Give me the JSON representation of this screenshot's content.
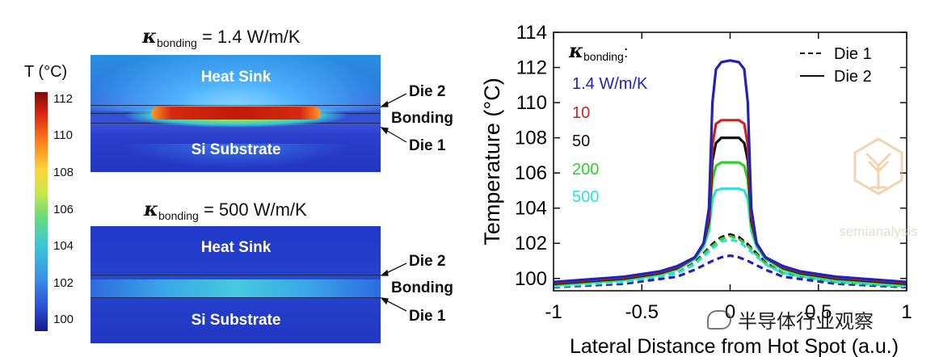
{
  "left": {
    "panels": [
      {
        "kappa_symbol": "κ",
        "kappa_sub": "bonding",
        "kappa_value": "= 1.4 W/m/K",
        "heat_sink": "Heat Sink",
        "substrate": "Si Substrate",
        "die2": "Die 2",
        "bonding": "Bonding",
        "die1": "Die 1"
      },
      {
        "kappa_symbol": "κ",
        "kappa_sub": "bonding",
        "kappa_value": "= 500 W/m/K",
        "heat_sink": "Heat Sink",
        "substrate": "Si Substrate",
        "die2": "Die 2",
        "bonding": "Bonding",
        "die1": "Die 1"
      }
    ],
    "colorbar": {
      "title": "T (°C)",
      "ticks": [
        "112",
        "110",
        "108",
        "106",
        "104",
        "102",
        "100"
      ]
    }
  },
  "watermark": {
    "brand": "semianalysis",
    "wechat": "半导体行业观察"
  },
  "chart_data": {
    "type": "line",
    "xlabel": "Lateral Distance from Hot Spot (a.u.)",
    "ylabel": "Temperature (°C)",
    "xlim": [
      -1,
      1
    ],
    "ylim": [
      99.3,
      114
    ],
    "xticks": [
      "-1",
      "-0.5",
      "0",
      "0.5",
      "1"
    ],
    "yticks": [
      "100",
      "102",
      "104",
      "106",
      "108",
      "110",
      "112",
      "114"
    ],
    "legend_title": {
      "symbol": "κ",
      "sub": "bonding",
      "suffix": ":"
    },
    "legend_styles": [
      {
        "name": "Die 1",
        "dash": true
      },
      {
        "name": "Die 2",
        "dash": false
      }
    ],
    "series_labels": [
      {
        "label": "1.4 W/m/K",
        "color": "#2222bb"
      },
      {
        "label": "10",
        "color": "#cc2222"
      },
      {
        "label": "50",
        "color": "#111111"
      },
      {
        "label": "200",
        "color": "#33cc33"
      },
      {
        "label": "500",
        "color": "#33dddd"
      }
    ],
    "series": [
      {
        "kappa": "1.4",
        "die": "Die 2",
        "color": "#2222bb",
        "dash": false,
        "x": [
          -1,
          -0.8,
          -0.6,
          -0.4,
          -0.3,
          -0.2,
          -0.15,
          -0.12,
          -0.1,
          -0.08,
          -0.05,
          0,
          0.05,
          0.08,
          0.1,
          0.12,
          0.15,
          0.2,
          0.3,
          0.4,
          0.6,
          0.8,
          1
        ],
        "y": [
          99.8,
          99.95,
          100.1,
          100.4,
          100.7,
          101.2,
          102.0,
          104.0,
          110.0,
          111.9,
          112.3,
          112.4,
          112.3,
          111.9,
          110.0,
          104.0,
          102.0,
          101.2,
          100.7,
          100.4,
          100.1,
          99.95,
          99.8
        ]
      },
      {
        "kappa": "10",
        "die": "Die 2",
        "color": "#cc2222",
        "dash": false,
        "x": [
          -1,
          -0.8,
          -0.6,
          -0.4,
          -0.3,
          -0.2,
          -0.15,
          -0.12,
          -0.1,
          -0.08,
          -0.05,
          0,
          0.05,
          0.08,
          0.1,
          0.12,
          0.15,
          0.2,
          0.3,
          0.4,
          0.6,
          0.8,
          1
        ],
        "y": [
          99.75,
          99.9,
          100.05,
          100.35,
          100.65,
          101.2,
          102.0,
          103.6,
          107.6,
          108.8,
          109.0,
          109.0,
          109.0,
          108.8,
          107.6,
          103.6,
          102.0,
          101.2,
          100.65,
          100.35,
          100.05,
          99.9,
          99.75
        ]
      },
      {
        "kappa": "50",
        "die": "Die 2",
        "color": "#111111",
        "dash": false,
        "x": [
          -1,
          -0.8,
          -0.6,
          -0.4,
          -0.3,
          -0.2,
          -0.15,
          -0.12,
          -0.1,
          -0.08,
          -0.05,
          0,
          0.05,
          0.08,
          0.1,
          0.12,
          0.15,
          0.2,
          0.3,
          0.4,
          0.6,
          0.8,
          1
        ],
        "y": [
          99.7,
          99.85,
          100.0,
          100.3,
          100.6,
          101.2,
          102.0,
          103.3,
          106.7,
          107.7,
          108.0,
          108.0,
          108.0,
          107.7,
          106.7,
          103.3,
          102.0,
          101.2,
          100.6,
          100.3,
          100.0,
          99.85,
          99.7
        ]
      },
      {
        "kappa": "200",
        "die": "Die 2",
        "color": "#33cc33",
        "dash": false,
        "x": [
          -1,
          -0.8,
          -0.6,
          -0.4,
          -0.3,
          -0.2,
          -0.15,
          -0.12,
          -0.1,
          -0.08,
          -0.05,
          0,
          0.05,
          0.08,
          0.1,
          0.12,
          0.15,
          0.2,
          0.3,
          0.4,
          0.6,
          0.8,
          1
        ],
        "y": [
          99.65,
          99.8,
          99.95,
          100.25,
          100.55,
          101.15,
          101.9,
          103.0,
          105.6,
          106.4,
          106.6,
          106.6,
          106.6,
          106.4,
          105.6,
          103.0,
          101.9,
          101.15,
          100.55,
          100.25,
          99.95,
          99.8,
          99.65
        ]
      },
      {
        "kappa": "500",
        "die": "Die 2",
        "color": "#33dddd",
        "dash": false,
        "x": [
          -1,
          -0.8,
          -0.6,
          -0.4,
          -0.3,
          -0.2,
          -0.15,
          -0.12,
          -0.1,
          -0.08,
          -0.05,
          0,
          0.05,
          0.08,
          0.1,
          0.12,
          0.15,
          0.2,
          0.3,
          0.4,
          0.6,
          0.8,
          1
        ],
        "y": [
          99.6,
          99.75,
          99.9,
          100.2,
          100.5,
          101.1,
          101.8,
          102.7,
          104.5,
          105.0,
          105.1,
          105.1,
          105.1,
          105.0,
          104.5,
          102.7,
          101.8,
          101.1,
          100.5,
          100.2,
          99.9,
          99.75,
          99.6
        ]
      },
      {
        "kappa": "1.4",
        "die": "Die 1",
        "color": "#2222bb",
        "dash": true,
        "x": [
          -1,
          -0.6,
          -0.3,
          -0.2,
          -0.1,
          -0.05,
          0,
          0.05,
          0.1,
          0.2,
          0.3,
          0.6,
          1
        ],
        "y": [
          99.5,
          99.7,
          100.1,
          100.5,
          101.0,
          101.2,
          101.3,
          101.2,
          101.0,
          100.5,
          100.1,
          99.7,
          99.5
        ]
      },
      {
        "kappa": "10",
        "die": "Die 1",
        "color": "#cc2222",
        "dash": true,
        "x": [
          -1,
          -0.6,
          -0.3,
          -0.2,
          -0.1,
          -0.05,
          0,
          0.05,
          0.1,
          0.2,
          0.3,
          0.6,
          1
        ],
        "y": [
          99.55,
          99.8,
          100.3,
          100.9,
          101.9,
          102.3,
          102.45,
          102.3,
          101.9,
          100.9,
          100.3,
          99.8,
          99.55
        ]
      },
      {
        "kappa": "50",
        "die": "Die 1",
        "color": "#111111",
        "dash": true,
        "x": [
          -1,
          -0.6,
          -0.3,
          -0.2,
          -0.1,
          -0.05,
          0,
          0.05,
          0.1,
          0.2,
          0.3,
          0.6,
          1
        ],
        "y": [
          99.55,
          99.8,
          100.3,
          100.9,
          101.95,
          102.35,
          102.5,
          102.35,
          101.95,
          100.9,
          100.3,
          99.8,
          99.55
        ]
      },
      {
        "kappa": "200",
        "die": "Die 1",
        "color": "#33cc33",
        "dash": true,
        "x": [
          -1,
          -0.6,
          -0.3,
          -0.2,
          -0.1,
          -0.05,
          0,
          0.05,
          0.1,
          0.2,
          0.3,
          0.6,
          1
        ],
        "y": [
          99.55,
          99.8,
          100.3,
          100.85,
          101.85,
          102.25,
          102.4,
          102.25,
          101.85,
          100.85,
          100.3,
          99.8,
          99.55
        ]
      },
      {
        "kappa": "500",
        "die": "Die 1",
        "color": "#33dddd",
        "dash": true,
        "x": [
          -1,
          -0.6,
          -0.3,
          -0.2,
          -0.1,
          -0.05,
          0,
          0.05,
          0.1,
          0.2,
          0.3,
          0.6,
          1
        ],
        "y": [
          99.55,
          99.8,
          100.3,
          100.8,
          101.7,
          102.1,
          102.2,
          102.1,
          101.7,
          100.8,
          100.3,
          99.8,
          99.55
        ]
      }
    ]
  }
}
